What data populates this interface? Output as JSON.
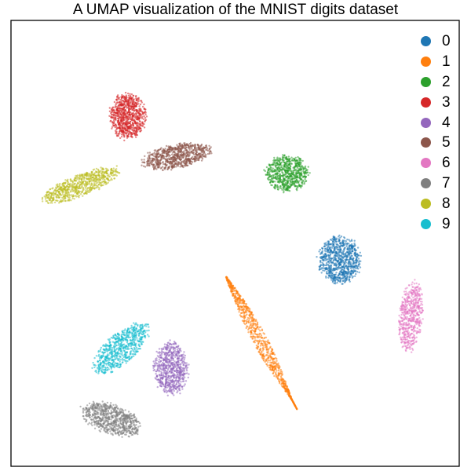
{
  "chart_data": {
    "type": "scatter",
    "title": "A UMAP visualization of the MNIST digits dataset",
    "xlabel": "",
    "ylabel": "",
    "axis_ticks": false,
    "grid": false,
    "legend_position": "top-right",
    "xlim": [
      0,
      100
    ],
    "ylim": [
      0,
      100
    ],
    "series": [
      {
        "name": "0",
        "color": "#1f77b4",
        "shape": "blob",
        "center": [
          73.3,
          46.3
        ],
        "rx": 5.2,
        "ry": 5.8,
        "angle": 0,
        "n": 850
      },
      {
        "name": "1",
        "color": "#ff7f0e",
        "shape": "needle",
        "start": [
          48.0,
          42.5
        ],
        "end": [
          63.8,
          12.8
        ],
        "halfwidth": 1.6,
        "n": 850
      },
      {
        "name": "2",
        "color": "#2ca02c",
        "shape": "blob",
        "center": [
          61.5,
          65.7
        ],
        "rx": 5.3,
        "ry": 4.5,
        "angle": 0,
        "n": 700
      },
      {
        "name": "3",
        "color": "#d62728",
        "shape": "blob",
        "center": [
          26.0,
          78.5
        ],
        "rx": 4.4,
        "ry": 5.6,
        "angle": 0,
        "n": 800
      },
      {
        "name": "4",
        "color": "#9467bd",
        "shape": "blob",
        "center": [
          35.7,
          22.0
        ],
        "rx": 4.2,
        "ry": 6.5,
        "angle": 0,
        "n": 700
      },
      {
        "name": "5",
        "color": "#8c564b",
        "shape": "blob",
        "center": [
          36.9,
          69.5
        ],
        "rx": 8.5,
        "ry": 2.9,
        "angle": 10,
        "n": 800
      },
      {
        "name": "6",
        "color": "#e377c2",
        "shape": "blob",
        "center": [
          89.2,
          33.5
        ],
        "rx": 2.9,
        "ry": 8.5,
        "angle": -6,
        "n": 550
      },
      {
        "name": "7",
        "color": "#7f7f7f",
        "shape": "blob",
        "center": [
          22.4,
          10.5
        ],
        "rx": 7.6,
        "ry": 3.6,
        "angle": -20,
        "n": 750
      },
      {
        "name": "8",
        "color": "#bcbd22",
        "shape": "blob",
        "center": [
          15.5,
          63.0
        ],
        "rx": 10.0,
        "ry": 2.6,
        "angle": 22,
        "n": 700
      },
      {
        "name": "9",
        "color": "#17becf",
        "shape": "blob",
        "center": [
          24.6,
          26.4
        ],
        "rx": 8.5,
        "ry": 3.6,
        "angle": 42,
        "n": 700
      }
    ]
  }
}
